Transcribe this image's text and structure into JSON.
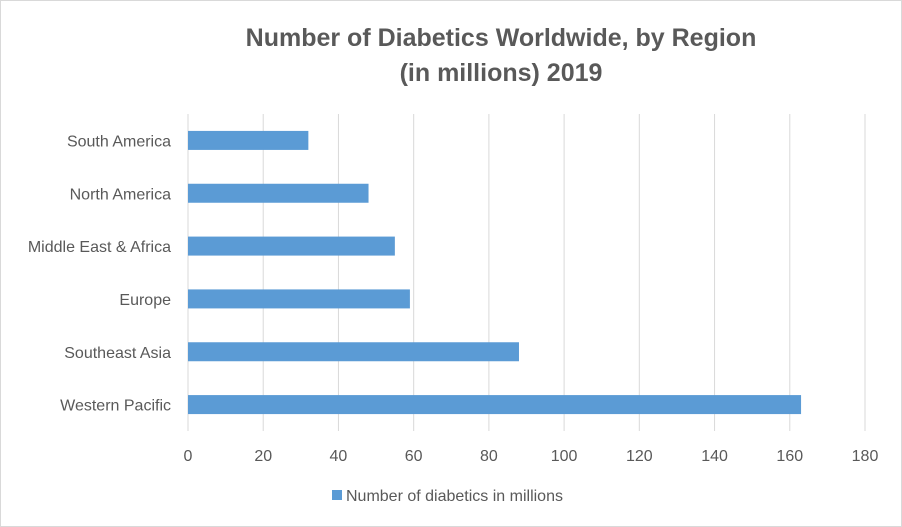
{
  "chart_data": {
    "type": "bar",
    "orientation": "horizontal",
    "title": "Number of Diabetics Worldwide, by Region",
    "subtitle": "(in millions) 2019",
    "categories": [
      "South America",
      "North America",
      "Middle East & Africa",
      "Europe",
      "Southeast Asia",
      "Western Pacific"
    ],
    "series": [
      {
        "name": "Number of diabetics in millions",
        "values": [
          32,
          48,
          55,
          59,
          88,
          163
        ]
      }
    ],
    "xlim": [
      0,
      180
    ],
    "xticks": [
      "0",
      "20",
      "40",
      "60",
      "80",
      "100",
      "120",
      "140",
      "160",
      "180"
    ],
    "xlabel": "",
    "ylabel": "",
    "grid": "vertical",
    "legend": "bottom",
    "colors": {
      "bar": "#5b9bd5",
      "grid": "#d9d9d9",
      "text": "#595959"
    }
  }
}
